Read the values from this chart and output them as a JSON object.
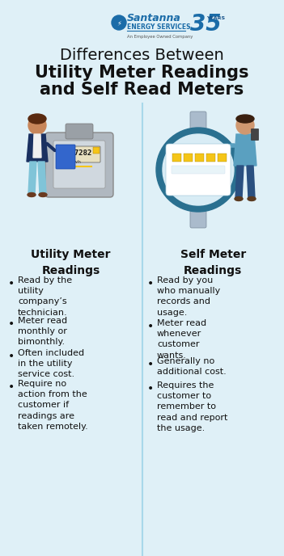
{
  "bg_color": "#dff0f7",
  "title_line1": "Differences Between",
  "title_line2": "Utility Meter Readings",
  "title_line3": "and Self Read Meters",
  "left_header": "Utility Meter\nReadings",
  "right_header": "Self Meter\nReadings",
  "left_bullets": [
    "Read by the\nutility\ncompany’s\ntechnician.",
    "Meter read\nmonthly or\nbimonthly.",
    "Often included\nin the utility\nservice cost.",
    "Require no\naction from the\ncustomer if\nreadings are\ntaken remotely."
  ],
  "right_bullets": [
    "Read by you\nwho manually\nrecords and\nusage.",
    "Meter read\nwhenever\ncustomer\nwants.",
    "Generally no\nadditional cost.",
    "Requires the\ncustomer to\nremember to\nread and report\nthe usage."
  ],
  "divider_color": "#a8d8ea",
  "header_color": "#111111",
  "bullet_color": "#111111",
  "logo_blue": "#1b6ca8",
  "logo_blue_dark": "#145088"
}
